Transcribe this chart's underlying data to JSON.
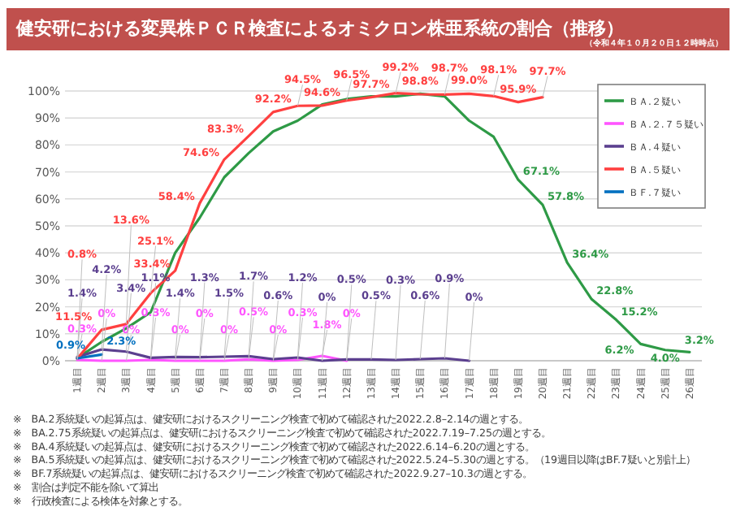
{
  "chart_data": {
    "type": "line",
    "title": "健安研における変異株ＰＣＲ検査によるオミクロン株亜系統の割合（推移）",
    "subtitle": "（令和４年１０月２０日１２時時点）",
    "categories": [
      "1週目",
      "2週目",
      "3週目",
      "4週目",
      "5週目",
      "6週目",
      "7週目",
      "8週目",
      "9週目",
      "10週目",
      "11週目",
      "12週目",
      "13週目",
      "14週目",
      "15週目",
      "16週目",
      "17週目",
      "18週目",
      "19週目",
      "20週目",
      "21週目",
      "22週目",
      "23週目",
      "24週目",
      "25週目",
      "26週目"
    ],
    "series": [
      {
        "name": "ＢＡ.２疑い",
        "color": "#2e9a46",
        "values": [
          1,
          7,
          12,
          18,
          40,
          53,
          68,
          77,
          85,
          89,
          95,
          97,
          98,
          98,
          99,
          98,
          89,
          83,
          67.1,
          57.8,
          36.4,
          22.8,
          15.2,
          6.2,
          4.0,
          3.2
        ],
        "value_labels": [
          null,
          null,
          null,
          null,
          null,
          null,
          null,
          null,
          null,
          null,
          null,
          null,
          null,
          null,
          null,
          null,
          null,
          null,
          "67.1%",
          "57.8%",
          "36.4%",
          "22.8%",
          "15.2%",
          "6.2%",
          "4.0%",
          "3.2%"
        ]
      },
      {
        "name": "ＢＡ.２.７５疑い",
        "color": "#ff55ff",
        "values": [
          0.3,
          0,
          0,
          0.3,
          0,
          0,
          0,
          0.5,
          0,
          0.3,
          1.8,
          0,
          null,
          null,
          null,
          null,
          null,
          null,
          null,
          null,
          null,
          null,
          null,
          null,
          null,
          null
        ],
        "value_labels": [
          "0.3%",
          "0%",
          "0%",
          "0.3%",
          "0%",
          "0%",
          "0%",
          "0.5%",
          "0%",
          "0.3%",
          "1.8%",
          "0%",
          null,
          null,
          null,
          null,
          null,
          null,
          null,
          null,
          null,
          null,
          null,
          null,
          null,
          null
        ]
      },
      {
        "name": "ＢＡ.４疑い",
        "color": "#5b3f8f",
        "values": [
          1.4,
          4.2,
          3.4,
          1.1,
          1.4,
          1.3,
          1.5,
          1.7,
          0.6,
          1.2,
          0,
          0.5,
          0.5,
          0.3,
          0.6,
          0.9,
          0,
          null,
          null,
          null,
          null,
          null,
          null,
          null,
          null,
          null
        ],
        "value_labels": [
          "1.4%",
          "4.2%",
          "3.4%",
          "1.1%",
          "1.4%",
          "1.3%",
          "1.5%",
          "1.7%",
          "0.6%",
          "1.2%",
          "0%",
          "0.5%",
          "0.5%",
          "0.3%",
          "0.6%",
          "0.9%",
          "0%",
          null,
          null,
          null,
          null,
          null,
          null,
          null,
          null,
          null
        ]
      },
      {
        "name": "ＢＡ.５疑い",
        "color": "#ff4040",
        "values": [
          0.8,
          11.5,
          13.6,
          25.1,
          33.4,
          58.4,
          74.6,
          83.3,
          92.2,
          94.5,
          94.6,
          96.5,
          97.7,
          99.2,
          98.8,
          98.7,
          99.0,
          98.1,
          95.9,
          97.7,
          null,
          null,
          null,
          null,
          null,
          null
        ],
        "value_labels": [
          "0.8%",
          "11.5%",
          "13.6%",
          "25.1%",
          "33.4%",
          "58.4%",
          "74.6%",
          "83.3%",
          "92.2%",
          "94.5%",
          "94.6%",
          "96.5%",
          "97.7%",
          "99.2%",
          "98.8%",
          "98.7%",
          "99.0%",
          "98.1%",
          "95.9%",
          "97.7%",
          null,
          null,
          null,
          null,
          null,
          null
        ]
      },
      {
        "name": "ＢＦ.７疑い",
        "color": "#0070c0",
        "values": [
          0.9,
          2.3,
          null,
          null,
          null,
          null,
          null,
          null,
          null,
          null,
          null,
          null,
          null,
          null,
          null,
          null,
          null,
          null,
          null,
          null,
          null,
          null,
          null,
          null,
          null,
          null
        ],
        "value_labels": [
          "0.9%",
          "2.3%",
          null,
          null,
          null,
          null,
          null,
          null,
          null,
          null,
          null,
          null,
          null,
          null,
          null,
          null,
          null,
          null,
          null,
          null,
          null,
          null,
          null,
          null,
          null,
          null
        ]
      }
    ],
    "ylim": [
      0,
      100
    ],
    "yticks": [
      {
        "value": 0,
        "label": "0%"
      },
      {
        "value": 10,
        "label": "10%"
      },
      {
        "value": 20,
        "label": "20%"
      },
      {
        "value": 30,
        "label": "30%"
      },
      {
        "value": 40,
        "label": "40%"
      },
      {
        "value": 50,
        "label": "50%"
      },
      {
        "value": 60,
        "label": "60%"
      },
      {
        "value": 70,
        "label": "70%"
      },
      {
        "value": 80,
        "label": "80%"
      },
      {
        "value": 90,
        "label": "90%"
      },
      {
        "value": 100,
        "label": "100%"
      }
    ],
    "grid": "y",
    "legend": "top right",
    "annotations": [
      "※　BA.2系統疑いの起算点は、健安研におけるスクリーニング検査で初めて確認された2022.2.8–2.14の週とする。",
      "※　BA.2.75系統疑いの起算点は、健安研におけるスクリーニング検査で初めて確認された2022.7.19–7.25の週とする。",
      "※　BA.4系統疑いの起算点は、健安研におけるスクリーニング検査で初めて確認された2022.6.14–6.20の週とする。",
      "※　BA.5系統疑いの起算点は、健安研におけるスクリーニング検査で初めて確認された2022.5.24–5.30の週とする。（19週目以降はBF.7疑いと別計上）",
      "※　BF.7系統疑いの起算点は、健安研におけるスクリーニング検査で初めて確認された2022.9.27–10.3の週とする。",
      "※　割合は判定不能を除いて算出",
      "※　行政検査による検体を対象とする。"
    ]
  }
}
